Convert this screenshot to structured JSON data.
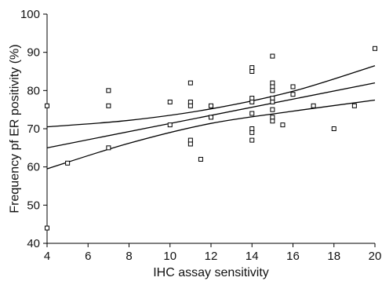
{
  "chart_data": {
    "type": "scatter",
    "title": "",
    "xlabel": "IHC assay sensitivity",
    "ylabel": "Frequency pf ER positivity (%)",
    "xlim": [
      4,
      20
    ],
    "ylim": [
      40,
      100
    ],
    "x_ticks": [
      4,
      6,
      8,
      10,
      12,
      14,
      16,
      18,
      20
    ],
    "y_ticks": [
      40,
      50,
      60,
      70,
      80,
      90,
      100
    ],
    "grid": false,
    "legend": "none",
    "marker": "open-square",
    "series": [
      {
        "points": [
          {
            "x": 4,
            "y": 76
          },
          {
            "x": 4,
            "y": 44
          },
          {
            "x": 5,
            "y": 61
          },
          {
            "x": 7,
            "y": 80
          },
          {
            "x": 7,
            "y": 76
          },
          {
            "x": 7,
            "y": 65
          },
          {
            "x": 10,
            "y": 77
          },
          {
            "x": 10,
            "y": 71
          },
          {
            "x": 11,
            "y": 82
          },
          {
            "x": 11,
            "y": 77
          },
          {
            "x": 11,
            "y": 76
          },
          {
            "x": 11,
            "y": 67
          },
          {
            "x": 11,
            "y": 66
          },
          {
            "x": 11.5,
            "y": 62
          },
          {
            "x": 12,
            "y": 76
          },
          {
            "x": 12,
            "y": 73
          },
          {
            "x": 14,
            "y": 86
          },
          {
            "x": 14,
            "y": 85
          },
          {
            "x": 14,
            "y": 78
          },
          {
            "x": 14,
            "y": 77
          },
          {
            "x": 14,
            "y": 74
          },
          {
            "x": 14,
            "y": 70
          },
          {
            "x": 14,
            "y": 69
          },
          {
            "x": 14,
            "y": 67
          },
          {
            "x": 15,
            "y": 89
          },
          {
            "x": 15,
            "y": 82
          },
          {
            "x": 15,
            "y": 81
          },
          {
            "x": 15,
            "y": 80
          },
          {
            "x": 15,
            "y": 78
          },
          {
            "x": 15,
            "y": 77
          },
          {
            "x": 15,
            "y": 75
          },
          {
            "x": 15,
            "y": 73
          },
          {
            "x": 15,
            "y": 72
          },
          {
            "x": 15.5,
            "y": 71
          },
          {
            "x": 16,
            "y": 81
          },
          {
            "x": 16,
            "y": 79
          },
          {
            "x": 17,
            "y": 76
          },
          {
            "x": 18,
            "y": 70
          },
          {
            "x": 19,
            "y": 76
          },
          {
            "x": 20,
            "y": 91
          }
        ]
      }
    ],
    "fit_line": {
      "x": [
        4,
        20
      ],
      "y": [
        65,
        82
      ]
    },
    "confidence_band": {
      "upper": {
        "x": [
          4,
          8,
          12,
          16,
          20
        ],
        "y": [
          70.5,
          72.2,
          75.2,
          79.8,
          86.5
        ]
      },
      "lower": {
        "x": [
          4,
          8,
          12,
          16,
          20
        ],
        "y": [
          59.5,
          66.2,
          71.4,
          74.6,
          77.5
        ]
      }
    }
  }
}
